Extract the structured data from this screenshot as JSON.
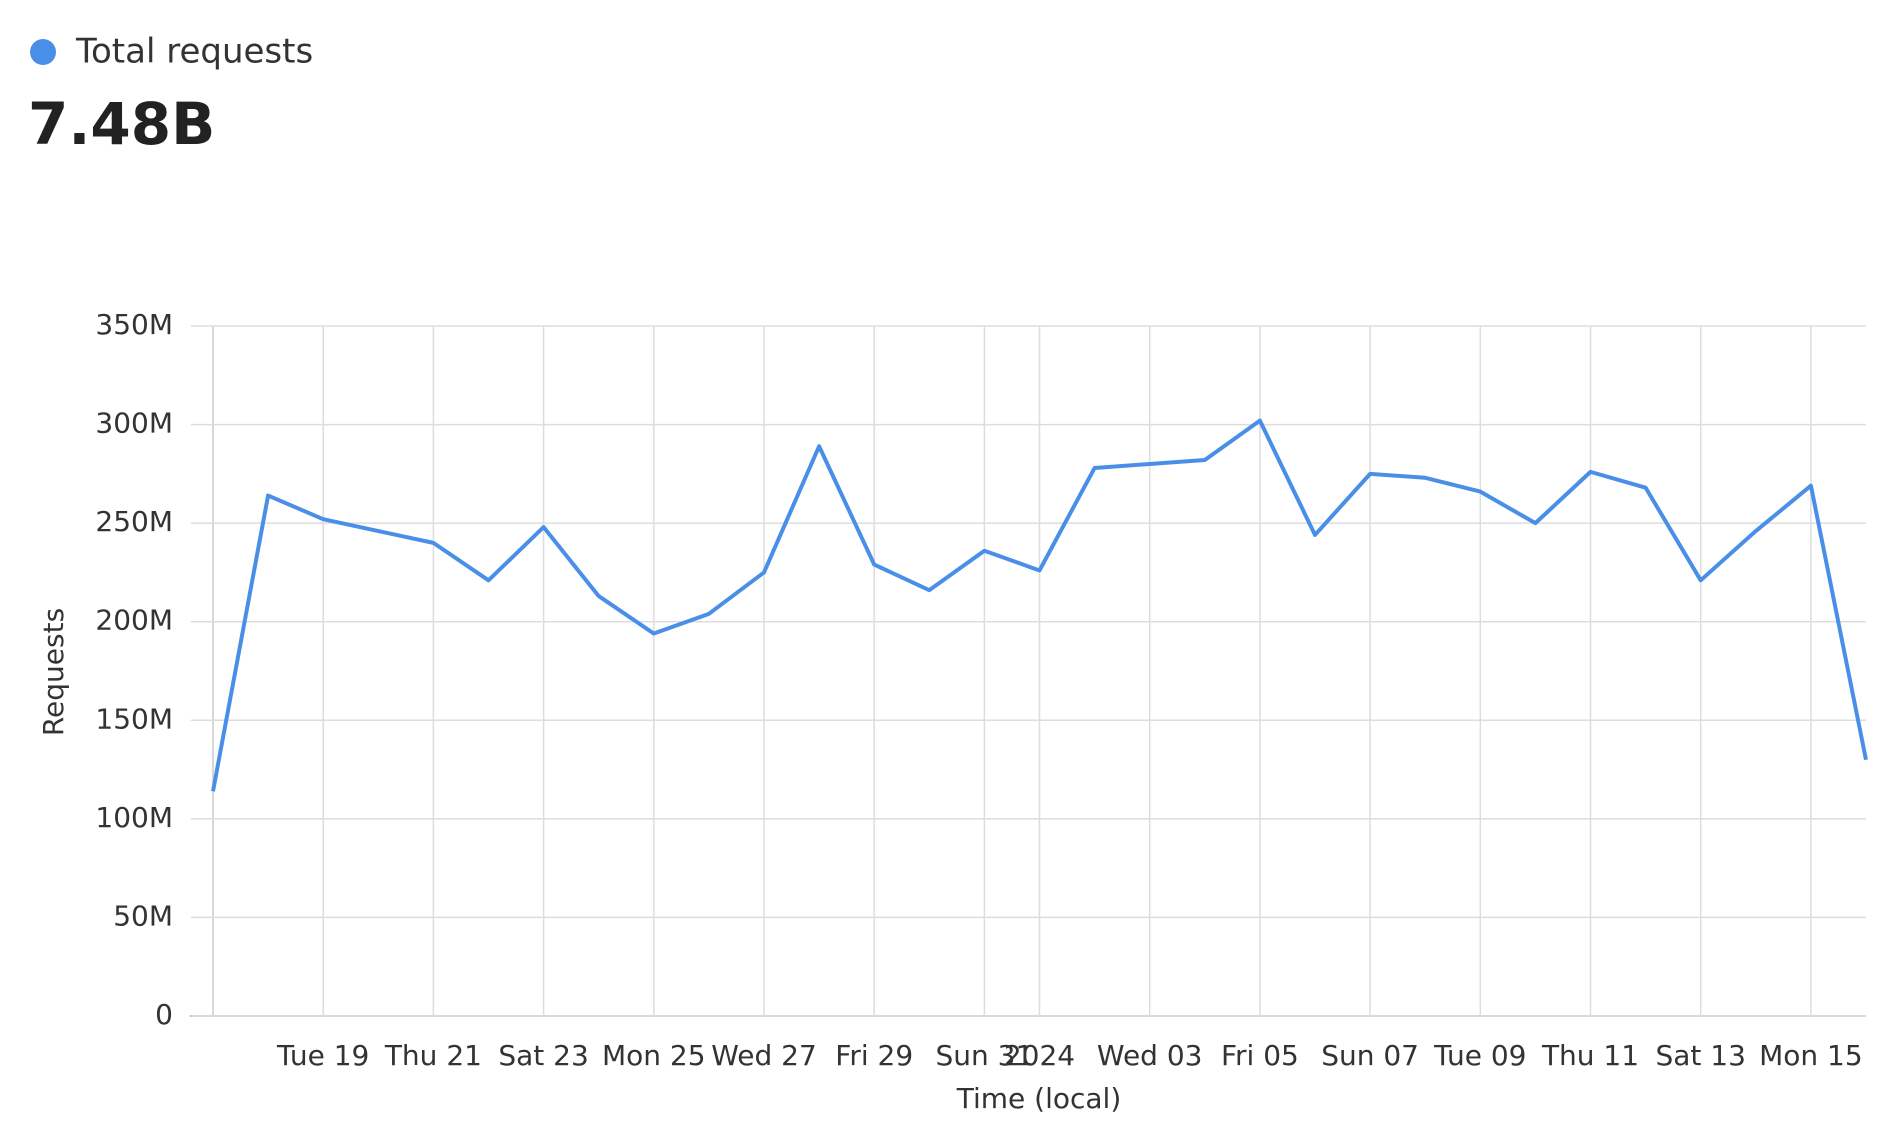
{
  "chart_data": {
    "type": "line",
    "summary_value": "7.48B",
    "x_label": "Time (local)",
    "y_label": "Requests",
    "categories": [
      null,
      null,
      "Tue 19",
      null,
      "Thu 21",
      null,
      "Sat 23",
      null,
      "Mon 25",
      null,
      "Wed 27",
      null,
      "Fri 29",
      null,
      "Sun 31",
      "2024",
      null,
      "Wed 03",
      null,
      "Fri 05",
      null,
      "Sun 07",
      null,
      "Tue 09",
      null,
      "Thu 11",
      null,
      "Sat 13",
      null,
      "Mon 15",
      null
    ],
    "series": [
      {
        "name": "Total requests",
        "color": "#4a8fe7",
        "values": [
          114000000,
          264000000,
          252000000,
          246000000,
          240000000,
          221000000,
          248000000,
          213000000,
          194000000,
          204000000,
          225000000,
          289000000,
          229000000,
          216000000,
          236000000,
          226000000,
          278000000,
          280000000,
          282000000,
          302000000,
          244000000,
          275000000,
          273000000,
          266000000,
          250000000,
          276000000,
          268000000,
          221000000,
          246000000,
          269000000,
          130000000
        ]
      }
    ],
    "ylim": [
      0,
      350000000
    ],
    "yticks": [
      0,
      {
        "value": 50000000,
        "label": "50M"
      },
      {
        "value": 100000000,
        "label": "100M"
      },
      {
        "value": 150000000,
        "label": "150M"
      },
      {
        "value": 200000000,
        "label": "200M"
      },
      {
        "value": 250000000,
        "label": "250M"
      },
      {
        "value": 300000000,
        "label": "300M"
      },
      {
        "value": 350000000,
        "label": "350M"
      }
    ],
    "grid": true
  }
}
